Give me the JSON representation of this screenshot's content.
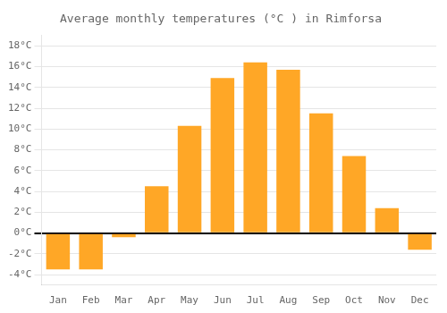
{
  "chart_data": {
    "type": "bar",
    "title": "Average monthly temperatures (°C ) in Rimforsa",
    "categories": [
      "Jan",
      "Feb",
      "Mar",
      "Apr",
      "May",
      "Jun",
      "Jul",
      "Aug",
      "Sep",
      "Oct",
      "Nov",
      "Dec"
    ],
    "values": [
      -3.5,
      -3.5,
      -0.4,
      4.5,
      10.3,
      14.9,
      16.4,
      15.7,
      11.5,
      7.4,
      2.4,
      -1.6
    ],
    "color": "#FFA726",
    "ylim": [
      -5,
      19
    ],
    "yticks": [
      {
        "value": -4,
        "label": "-4°C"
      },
      {
        "value": -2,
        "label": "-2°C"
      },
      {
        "value": 0,
        "label": "0°C"
      },
      {
        "value": 2,
        "label": "2°C"
      },
      {
        "value": 4,
        "label": "4°C"
      },
      {
        "value": 6,
        "label": "6°C"
      },
      {
        "value": 8,
        "label": "8°C"
      },
      {
        "value": 10,
        "label": "10°C"
      },
      {
        "value": 12,
        "label": "12°C"
      },
      {
        "value": 14,
        "label": "14°C"
      },
      {
        "value": 16,
        "label": "16°C"
      },
      {
        "value": 18,
        "label": "18°C"
      }
    ],
    "grid": true
  }
}
